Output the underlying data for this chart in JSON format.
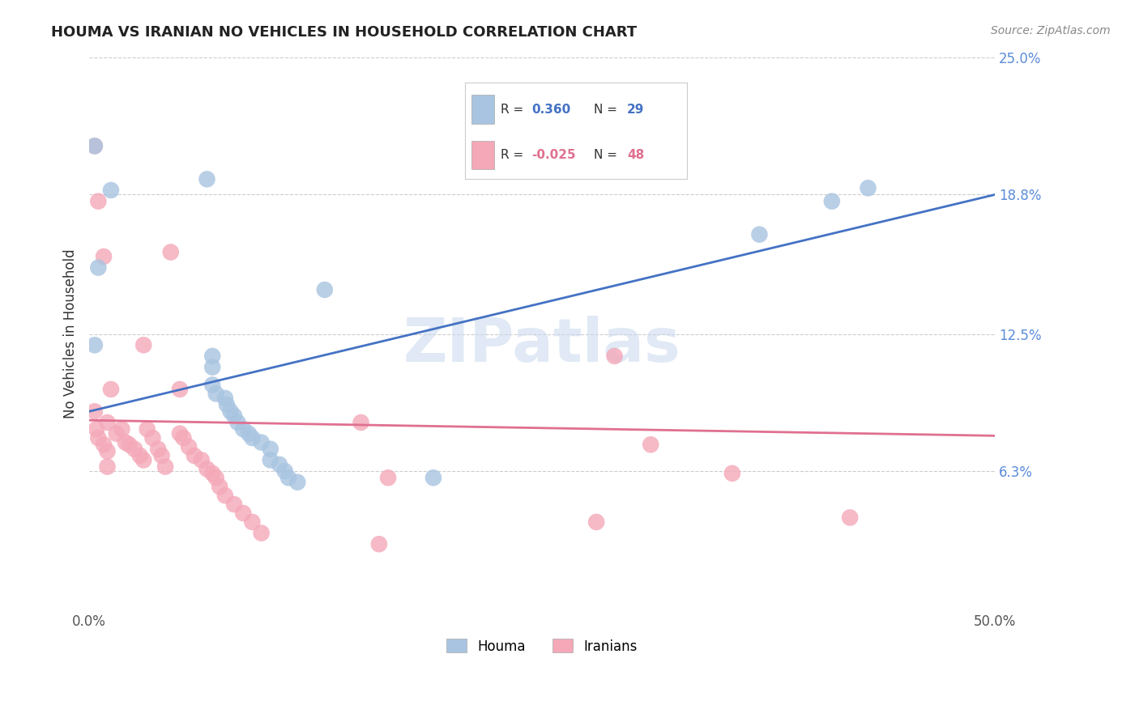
{
  "title": "HOUMA VS IRANIAN NO VEHICLES IN HOUSEHOLD CORRELATION CHART",
  "source": "Source: ZipAtlas.com",
  "ylabel": "No Vehicles in Household",
  "xlim": [
    0,
    0.5
  ],
  "ylim": [
    0,
    0.25
  ],
  "ytick_values": [
    0.063,
    0.125,
    0.188,
    0.25
  ],
  "ytick_labels": [
    "6.3%",
    "12.5%",
    "18.8%",
    "25.0%"
  ],
  "houma_R": 0.36,
  "houma_N": 29,
  "iranian_R": -0.025,
  "iranian_N": 48,
  "houma_color": "#a8c4e0",
  "iranian_color": "#f4a8b8",
  "houma_line_color": "#4472c4",
  "iranian_line_color": "#e07090",
  "watermark": "ZIPatlas",
  "blue_line_x0": 0.0,
  "blue_line_y0": 0.09,
  "blue_line_x1": 0.5,
  "blue_line_y1": 0.188,
  "pink_line_x0": 0.0,
  "pink_line_y0": 0.086,
  "pink_line_x1": 0.5,
  "pink_line_y1": 0.079,
  "houma_x": [
    0.003,
    0.012,
    0.005,
    0.003,
    0.065,
    0.068,
    0.068,
    0.068,
    0.07,
    0.075,
    0.076,
    0.078,
    0.08,
    0.082,
    0.085,
    0.088,
    0.09,
    0.095,
    0.1,
    0.1,
    0.105,
    0.108,
    0.11,
    0.115,
    0.13,
    0.19,
    0.37,
    0.41,
    0.43
  ],
  "houma_y": [
    0.21,
    0.19,
    0.155,
    0.12,
    0.195,
    0.115,
    0.11,
    0.102,
    0.098,
    0.096,
    0.093,
    0.09,
    0.088,
    0.085,
    0.082,
    0.08,
    0.078,
    0.076,
    0.073,
    0.068,
    0.066,
    0.063,
    0.06,
    0.058,
    0.145,
    0.06,
    0.17,
    0.185,
    0.191
  ],
  "iranian_x": [
    0.003,
    0.005,
    0.008,
    0.01,
    0.012,
    0.003,
    0.004,
    0.005,
    0.008,
    0.01,
    0.01,
    0.015,
    0.018,
    0.02,
    0.022,
    0.025,
    0.028,
    0.03,
    0.03,
    0.032,
    0.035,
    0.038,
    0.04,
    0.042,
    0.045,
    0.05,
    0.05,
    0.052,
    0.055,
    0.058,
    0.062,
    0.065,
    0.068,
    0.07,
    0.072,
    0.075,
    0.08,
    0.085,
    0.09,
    0.095,
    0.15,
    0.16,
    0.165,
    0.28,
    0.29,
    0.31,
    0.355,
    0.42
  ],
  "iranian_y": [
    0.21,
    0.185,
    0.16,
    0.085,
    0.1,
    0.09,
    0.082,
    0.078,
    0.075,
    0.072,
    0.065,
    0.08,
    0.082,
    0.076,
    0.075,
    0.073,
    0.07,
    0.068,
    0.12,
    0.082,
    0.078,
    0.073,
    0.07,
    0.065,
    0.162,
    0.08,
    0.1,
    0.078,
    0.074,
    0.07,
    0.068,
    0.064,
    0.062,
    0.06,
    0.056,
    0.052,
    0.048,
    0.044,
    0.04,
    0.035,
    0.085,
    0.03,
    0.06,
    0.04,
    0.115,
    0.075,
    0.062,
    0.042
  ]
}
